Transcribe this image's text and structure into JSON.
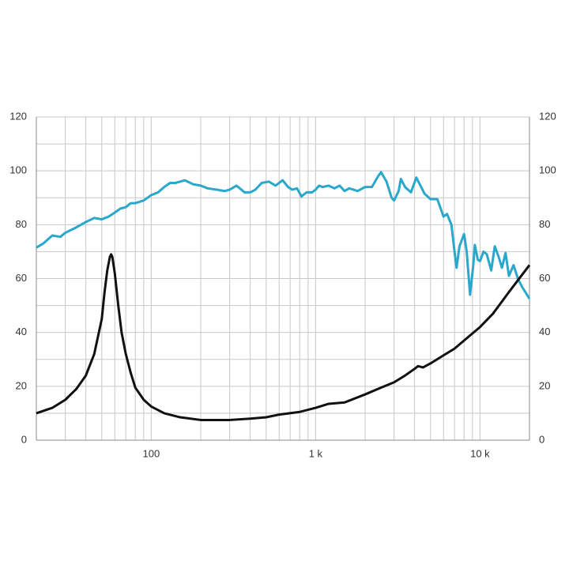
{
  "chart_data": {
    "type": "line",
    "xscale": "log",
    "grid": true,
    "xlim": [
      20,
      20000
    ],
    "ylim": [
      0,
      120
    ],
    "y2lim": [
      0,
      120
    ],
    "xticks": [
      100,
      {
        "value": 1000,
        "label": "1 k"
      },
      {
        "value": 10000,
        "label": "10 k"
      }
    ],
    "minor_xticks": [
      20,
      30,
      40,
      50,
      60,
      70,
      80,
      90,
      200,
      300,
      400,
      500,
      600,
      700,
      800,
      900,
      2000,
      3000,
      4000,
      5000,
      6000,
      7000,
      8000,
      9000,
      20000
    ],
    "yticks": [
      0,
      20,
      40,
      60,
      80,
      100,
      120
    ],
    "y2ticks": [
      0,
      20,
      40,
      60,
      80,
      100,
      120
    ],
    "minor_yticks": [
      10,
      30,
      50,
      70,
      90,
      110
    ],
    "series": [
      {
        "color": "#2aa8cc",
        "x": [
          20,
          22,
          25,
          28,
          30,
          35,
          40,
          45,
          50,
          55,
          60,
          65,
          70,
          75,
          80,
          90,
          100,
          110,
          120,
          130,
          140,
          150,
          160,
          180,
          200,
          220,
          250,
          280,
          300,
          330,
          370,
          400,
          430,
          470,
          520,
          570,
          630,
          680,
          720,
          770,
          820,
          880,
          950,
          1000,
          1050,
          1100,
          1200,
          1300,
          1400,
          1500,
          1600,
          1800,
          2000,
          2200,
          2400,
          2500,
          2700,
          2900,
          3000,
          3200,
          3300,
          3500,
          3800,
          4100,
          4300,
          4600,
          5000,
          5500,
          6000,
          6300,
          6700,
          7000,
          7200,
          7500,
          8000,
          8300,
          8700,
          9100,
          9300,
          9700,
          10000,
          10500,
          11000,
          11700,
          12300,
          13000,
          13600,
          14300,
          15000,
          16000,
          17000,
          18000,
          20000
        ],
        "values": [
          71.5,
          73,
          76,
          75.5,
          77,
          79,
          81,
          82.5,
          82,
          83,
          84.5,
          86,
          86.5,
          88,
          88,
          89,
          91,
          92,
          94,
          95.5,
          95.5,
          96,
          96.5,
          95,
          94.5,
          93.5,
          93,
          92.5,
          93,
          94.5,
          92,
          92,
          93,
          95.5,
          96,
          94.5,
          96.5,
          94,
          93,
          93.5,
          90.5,
          92,
          92,
          93,
          94.5,
          94,
          94.5,
          93.5,
          94.5,
          92.5,
          93.5,
          92.5,
          94,
          94,
          98,
          99.5,
          96,
          90,
          89,
          92.5,
          97,
          94,
          92,
          97.5,
          95,
          91.5,
          89.5,
          89.5,
          83,
          84,
          80,
          70,
          64,
          72,
          76.5,
          70,
          54,
          65,
          72.5,
          67,
          66.5,
          70,
          69,
          63,
          72,
          68,
          64,
          69.5,
          61,
          65,
          60,
          57,
          52.5
        ]
      },
      {
        "color": "#111111",
        "x": [
          20,
          25,
          30,
          35,
          40,
          45,
          50,
          52,
          54,
          56,
          57,
          58,
          60,
          63,
          66,
          70,
          75,
          80,
          90,
          100,
          120,
          150,
          200,
          300,
          400,
          500,
          600,
          800,
          1000,
          1200,
          1500,
          2000,
          2500,
          3000,
          3500,
          4000,
          4200,
          4500,
          5000,
          6000,
          7000,
          8000,
          10000,
          12000,
          15000,
          20000
        ],
        "values": [
          10,
          12,
          15,
          19,
          24,
          32,
          45,
          55,
          63,
          68,
          69,
          68,
          62,
          50,
          40,
          32,
          25,
          19.5,
          15,
          12.5,
          10,
          8.5,
          7.5,
          7.5,
          8,
          8.5,
          9.5,
          10.5,
          12,
          13.5,
          14,
          17,
          19.5,
          21.5,
          24,
          26.5,
          27.5,
          27,
          28.5,
          31.5,
          34,
          37,
          42,
          47,
          55,
          65
        ]
      }
    ]
  }
}
